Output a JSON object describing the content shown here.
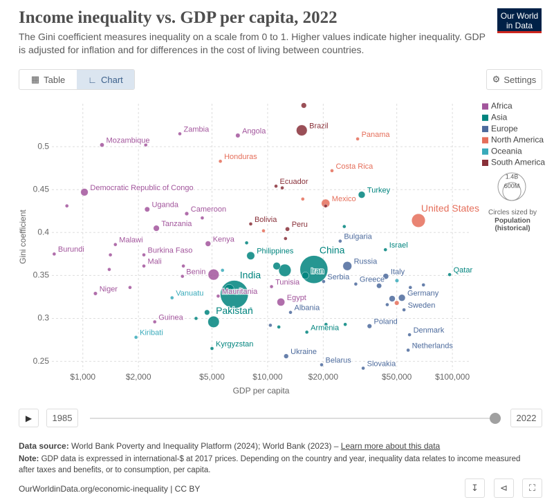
{
  "header": {
    "title": "Income inequality vs. GDP per capita, 2022",
    "subtitle": "The Gini coefficient measures inequality on a scale from 0 to 1. Higher values indicate higher inequality. GDP is adjusted for inflation and for differences in the cost of living between countries.",
    "logo": [
      "Our World",
      "in Data"
    ]
  },
  "controls": {
    "tabs": [
      "Table",
      "Chart"
    ],
    "settings": "Settings",
    "timeline": {
      "start": "1985",
      "end": "2022"
    }
  },
  "chart_data": {
    "type": "scatter",
    "x_label": "GDP per capita",
    "y_label": "Gini coefficient",
    "xscale": "log",
    "grid": true,
    "legend_position": "right",
    "xlim": [
      680,
      125000
    ],
    "ylim": [
      0.24,
      0.55
    ],
    "xticks": [
      {
        "value": 1000,
        "label": "$1,000"
      },
      {
        "value": 2000,
        "label": "$2,000"
      },
      {
        "value": 5000,
        "label": "$5,000"
      },
      {
        "value": 10000,
        "label": "$10,000"
      },
      {
        "value": 20000,
        "label": "$20,000"
      },
      {
        "value": 50000,
        "label": "$50,000"
      },
      {
        "value": 100000,
        "label": "$100,000"
      }
    ],
    "yticks": [
      0.25,
      0.3,
      0.35,
      0.4,
      0.45,
      0.5
    ],
    "series": [
      {
        "name": "Africa",
        "color": "#a2559c",
        "labels": [
          "Mozambique",
          "Zambia",
          "Angola",
          "Democratic Republic of Congo",
          "Uganda",
          "Cameroon",
          "Tanzania",
          "Kenya",
          "Malawi",
          "Burundi",
          "Burkina Faso",
          "Mali",
          "Benin",
          "Niger",
          "Guinea",
          "Egypt",
          "Mauritania",
          "Tunisia",
          null,
          null,
          null,
          null,
          null,
          null,
          null,
          null
        ],
        "x": [
          1270,
          3350,
          6900,
          1020,
          2230,
          3650,
          2500,
          4760,
          1500,
          700,
          2140,
          2140,
          3460,
          1170,
          2450,
          11800,
          5400,
          10500,
          5100,
          820,
          2190,
          1800,
          1390,
          1410,
          3500,
          4430
        ],
        "values": [
          0.502,
          0.515,
          0.513,
          0.447,
          0.427,
          0.422,
          0.405,
          0.387,
          0.386,
          0.375,
          0.374,
          0.361,
          0.349,
          0.329,
          0.296,
          0.319,
          0.326,
          0.337,
          0.351,
          0.431,
          0.502,
          0.336,
          0.357,
          0.374,
          0.361,
          0.417
        ],
        "sizes": [
          33000000,
          20000000,
          36000000,
          100000000,
          47000000,
          28000000,
          65000000,
          54000000,
          20000000,
          13000000,
          22000000,
          22000000,
          13000000,
          26000000,
          14000000,
          110000000,
          5000000,
          12000000,
          218000000,
          5000000,
          5000000,
          5000000,
          5000000,
          5000000,
          5000000,
          5000000
        ]
      },
      {
        "name": "Asia",
        "color": "#00847e",
        "labels": [
          "China",
          "India",
          "Iran",
          "Turkey",
          "Philippines",
          "Pakistan",
          "Kyrgyzstan",
          "Israel",
          "Qatar",
          "Armenia",
          null,
          null,
          null,
          null,
          null,
          null,
          null,
          null,
          null,
          null,
          null
        ],
        "x": [
          17800,
          6600,
          16000,
          32300,
          8100,
          5100,
          5000,
          43400,
          96600,
          16300,
          12400,
          11200,
          6200,
          4700,
          4100,
          7700,
          26000,
          8100,
          20700,
          26300,
          11500
        ],
        "values": [
          0.357,
          0.328,
          0.35,
          0.444,
          0.373,
          0.296,
          0.265,
          0.38,
          0.351,
          0.284,
          0.356,
          0.361,
          0.334,
          0.307,
          0.3,
          0.388,
          0.407,
          0.311,
          0.293,
          0.293,
          0.29
        ],
        "sizes": [
          1410000000,
          1420000000,
          89000000,
          85000000,
          115000000,
          235000000,
          7000000,
          9000000,
          3000000,
          3000000,
          275000000,
          100000000,
          171000000,
          50000000,
          5000000,
          5000000,
          10000000,
          5000000,
          5000000,
          5000000,
          5000000
        ]
      },
      {
        "name": "Europe",
        "color": "#4c6a9c",
        "labels": [
          "Russia",
          "Italy",
          "Germany",
          "Poland",
          "Ukraine",
          "Greece",
          "Serbia",
          "Bulgaria",
          "Albania",
          "Sweden",
          "Denmark",
          "Netherlands",
          "Slovakia",
          "Belarus",
          null,
          null,
          null,
          null,
          null,
          null,
          null
        ],
        "x": [
          27000,
          43600,
          53300,
          35600,
          12600,
          30000,
          20100,
          24700,
          13300,
          54700,
          58600,
          57600,
          32900,
          19600,
          47200,
          40100,
          59200,
          69700,
          44400,
          10350,
          63800
        ],
        "values": [
          0.361,
          0.349,
          0.324,
          0.291,
          0.256,
          0.34,
          0.343,
          0.39,
          0.307,
          0.31,
          0.281,
          0.263,
          0.242,
          0.246,
          0.323,
          0.338,
          0.336,
          0.339,
          0.316,
          0.292,
          0.27
        ],
        "sizes": [
          145000000,
          59000000,
          84000000,
          38000000,
          40000000,
          10000000,
          7000000,
          7000000,
          3000000,
          10000000,
          6000000,
          18000000,
          5000000,
          9000000,
          68000000,
          47000000,
          9000000,
          5000000,
          5000000,
          5000000,
          5000000
        ]
      },
      {
        "name": "North America",
        "color": "#e56e5a",
        "labels": [
          "United States",
          "Mexico",
          "Panama",
          "Honduras",
          "Costa Rica",
          null,
          null,
          null
        ],
        "x": [
          65500,
          20600,
          30700,
          5550,
          22300,
          15500,
          9500,
          50000
        ],
        "values": [
          0.414,
          0.434,
          0.509,
          0.483,
          0.472,
          0.439,
          0.402,
          0.318
        ],
        "sizes": [
          335000000,
          127000000,
          4000000,
          10000000,
          5000000,
          3000000,
          6000000,
          38000000
        ]
      },
      {
        "name": "Oceania",
        "color": "#38aaba",
        "labels": [
          "Vanuatu",
          "Kiribati",
          null,
          null
        ],
        "x": [
          3040,
          1940,
          50100,
          5700
        ],
        "values": [
          0.324,
          0.278,
          0.344,
          0.356
        ],
        "sizes": [
          300000,
          100000,
          26000000,
          1000000
        ]
      },
      {
        "name": "South America",
        "color": "#883039",
        "labels": [
          "Brazil",
          "Ecuador",
          "Bolivia",
          "Peru",
          null,
          null,
          null,
          null
        ],
        "x": [
          15300,
          11100,
          8100,
          12800,
          15700,
          12000,
          12500,
          20600
        ],
        "values": [
          0.519,
          0.454,
          0.41,
          0.404,
          0.548,
          0.452,
          0.393,
          0.431
        ],
        "sizes": [
          215000000,
          18000000,
          12000000,
          34000000,
          52000000,
          5000000,
          5000000,
          3000000
        ]
      }
    ],
    "size_legend": {
      "title": "Circles sized by",
      "name": "Population (historical)",
      "ticks": [
        {
          "value": 1400000000,
          "label": "1.4B"
        },
        {
          "value": 600000000,
          "label": "600M"
        }
      ]
    }
  },
  "footer": {
    "source_label": "Data source:",
    "source": "World Bank Poverty and Inequality Platform (2024); World Bank (2023) – ",
    "source_link": "Learn more about this data",
    "note_label": "Note:",
    "note": "GDP data is expressed in international-$ at 2017 prices. Depending on the country and year, inequality data relates to income measured after taxes and benefits, or to consumption, per capita.",
    "url": "OurWorldinData.org/economic-inequality | CC BY"
  }
}
